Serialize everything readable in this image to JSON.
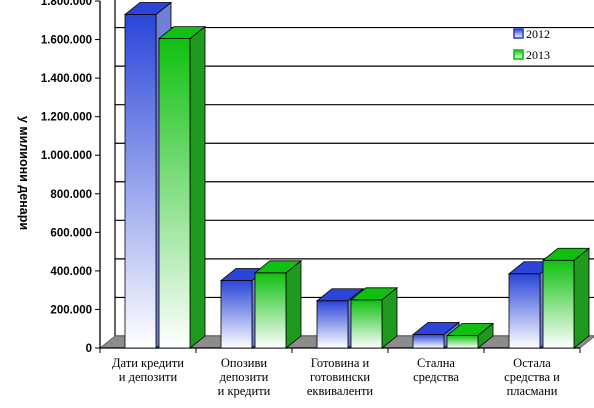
{
  "chart_data": {
    "type": "bar",
    "title": "",
    "ylabel": "у милиони денари",
    "xlabel": "",
    "ylim": [
      0,
      1800000
    ],
    "y_ticks": [
      "0",
      "200.000",
      "400.000",
      "600.000",
      "800.000",
      "1.000.000",
      "1.200.000",
      "1.400.000",
      "1.600.000",
      "1.800.000"
    ],
    "categories": [
      [
        "Дати кредити",
        "и депозити"
      ],
      [
        "Опозиви",
        "депозити",
        "и кредити"
      ],
      [
        "Готовина и",
        "готовински",
        "еквиваленти"
      ],
      [
        "Стална",
        "средства"
      ],
      [
        "Остала",
        "средства и",
        "пласмани"
      ]
    ],
    "series": [
      {
        "name": "2012",
        "values": [
          1730000,
          350000,
          245000,
          70000,
          385000
        ]
      },
      {
        "name": "2013",
        "values": [
          1605000,
          390000,
          250000,
          65000,
          455000
        ]
      }
    ],
    "legend_position": "top-right",
    "grid": true,
    "colors": {
      "2012_dark": "#2a45d8",
      "2012_light": "#ffffff",
      "2013_dark": "#10c010",
      "2013_light": "#ffffff",
      "floor": "#8c8c8c"
    }
  }
}
